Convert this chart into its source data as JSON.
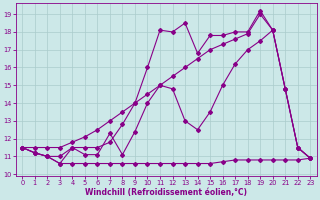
{
  "bg_color": "#cce8e8",
  "grid_color": "#aacccc",
  "line_color": "#880088",
  "xlabel": "Windchill (Refroidissement éolien,°C)",
  "xlim": [
    -0.5,
    23.5
  ],
  "ylim": [
    9.9,
    19.6
  ],
  "yticks": [
    10,
    11,
    12,
    13,
    14,
    15,
    16,
    17,
    18,
    19
  ],
  "xticks": [
    0,
    1,
    2,
    3,
    4,
    5,
    6,
    7,
    8,
    9,
    10,
    11,
    12,
    13,
    14,
    15,
    16,
    17,
    18,
    19,
    20,
    21,
    22,
    23
  ],
  "s_flat_x": [
    0,
    1,
    2,
    3,
    4,
    5,
    6,
    7,
    8,
    9,
    10,
    11,
    12,
    13,
    14,
    15,
    16,
    17,
    18,
    19,
    20,
    21,
    22,
    23
  ],
  "s_flat_y": [
    11.5,
    11.2,
    11.0,
    10.6,
    10.6,
    10.6,
    10.6,
    10.6,
    10.6,
    10.6,
    10.6,
    10.6,
    10.6,
    10.6,
    10.6,
    10.6,
    10.7,
    10.8,
    10.8,
    10.8,
    10.8,
    10.8,
    10.8,
    10.9
  ],
  "s_diag_x": [
    0,
    1,
    2,
    3,
    4,
    5,
    6,
    7,
    8,
    9,
    10,
    11,
    12,
    13,
    14,
    15,
    16,
    17,
    18,
    19,
    20,
    21,
    22,
    23
  ],
  "s_diag_y": [
    11.5,
    11.5,
    11.5,
    11.5,
    11.8,
    12.1,
    12.5,
    13.0,
    13.5,
    14.0,
    14.5,
    15.0,
    15.5,
    16.0,
    16.5,
    17.0,
    17.3,
    17.6,
    17.9,
    19.0,
    18.1,
    14.8,
    11.5,
    10.9
  ],
  "s_zigzag_x": [
    0,
    1,
    2,
    3,
    4,
    5,
    6,
    7,
    8,
    9,
    10,
    11,
    12,
    13,
    14,
    15,
    16,
    17,
    18,
    19,
    20,
    21,
    22,
    23
  ],
  "s_zigzag_y": [
    11.5,
    11.2,
    11.0,
    10.6,
    11.5,
    11.1,
    11.1,
    12.3,
    11.1,
    12.4,
    14.0,
    15.0,
    14.8,
    13.0,
    12.5,
    13.5,
    15.0,
    16.2,
    17.0,
    17.5,
    18.1,
    14.8,
    11.5,
    10.9
  ],
  "s_main_x": [
    0,
    1,
    2,
    3,
    4,
    5,
    6,
    7,
    8,
    9,
    10,
    11,
    12,
    13,
    14,
    15,
    16,
    17,
    18,
    19,
    20,
    21,
    22,
    23
  ],
  "s_main_y": [
    11.5,
    11.2,
    11.0,
    11.0,
    11.5,
    11.5,
    11.5,
    11.8,
    12.8,
    14.0,
    16.0,
    18.1,
    18.0,
    18.5,
    16.8,
    17.8,
    17.8,
    18.0,
    18.0,
    19.2,
    18.1,
    14.8,
    11.5,
    10.9
  ]
}
